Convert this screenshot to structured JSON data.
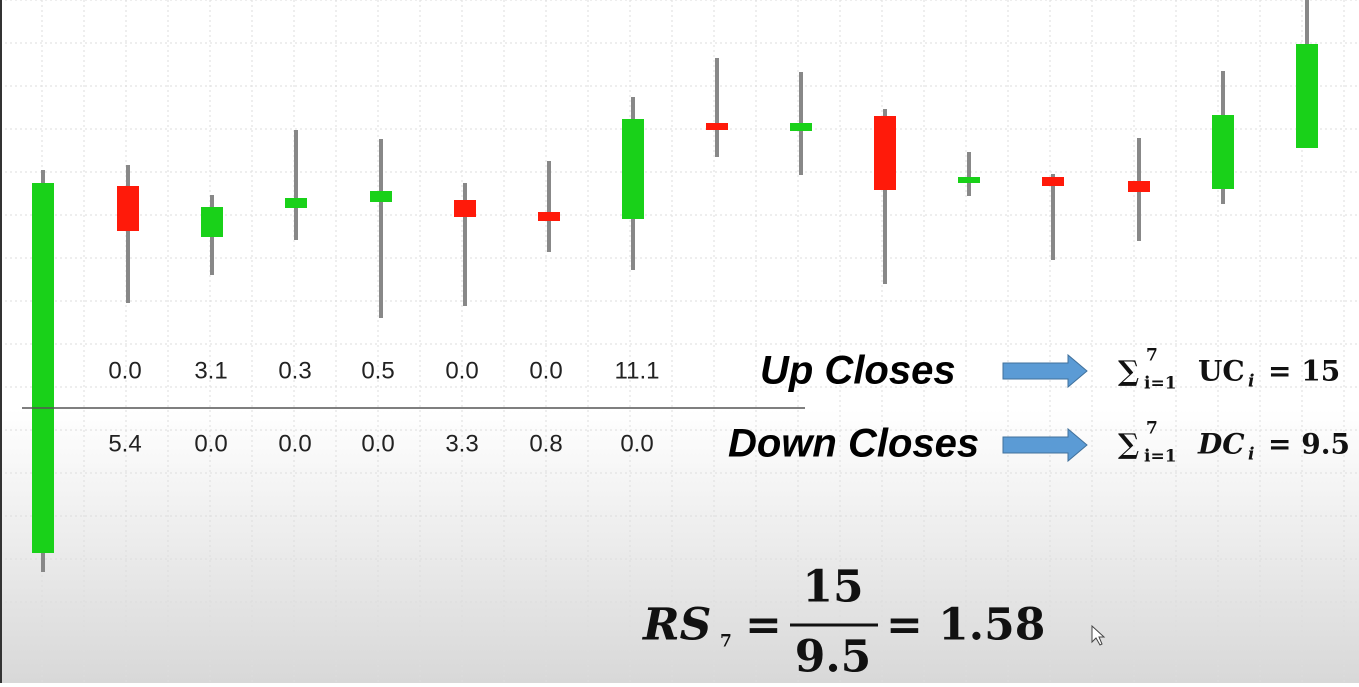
{
  "up_closes": {
    "label": "Up Closes",
    "values": [
      "0.0",
      "3.1",
      "0.3",
      "0.5",
      "0.0",
      "0.0",
      "11.1"
    ],
    "formula": {
      "sum": "∑",
      "upper": "7",
      "lower": "i=1",
      "term": "UC",
      "sub": "i",
      "result": "= 15"
    }
  },
  "down_closes": {
    "label": "Down Closes",
    "values": [
      "5.4",
      "0.0",
      "0.0",
      "0.0",
      "3.3",
      "0.8",
      "0.0"
    ],
    "formula": {
      "sum": "∑",
      "upper": "7",
      "lower": "i=1",
      "term": "DC",
      "sub": "i",
      "result": "= 9.5"
    }
  },
  "rs": {
    "lhs": "RS",
    "lhs_sub": "7",
    "eq": "=",
    "numerator": "15",
    "denominator": "9.5",
    "result": "= 1.58"
  }
}
